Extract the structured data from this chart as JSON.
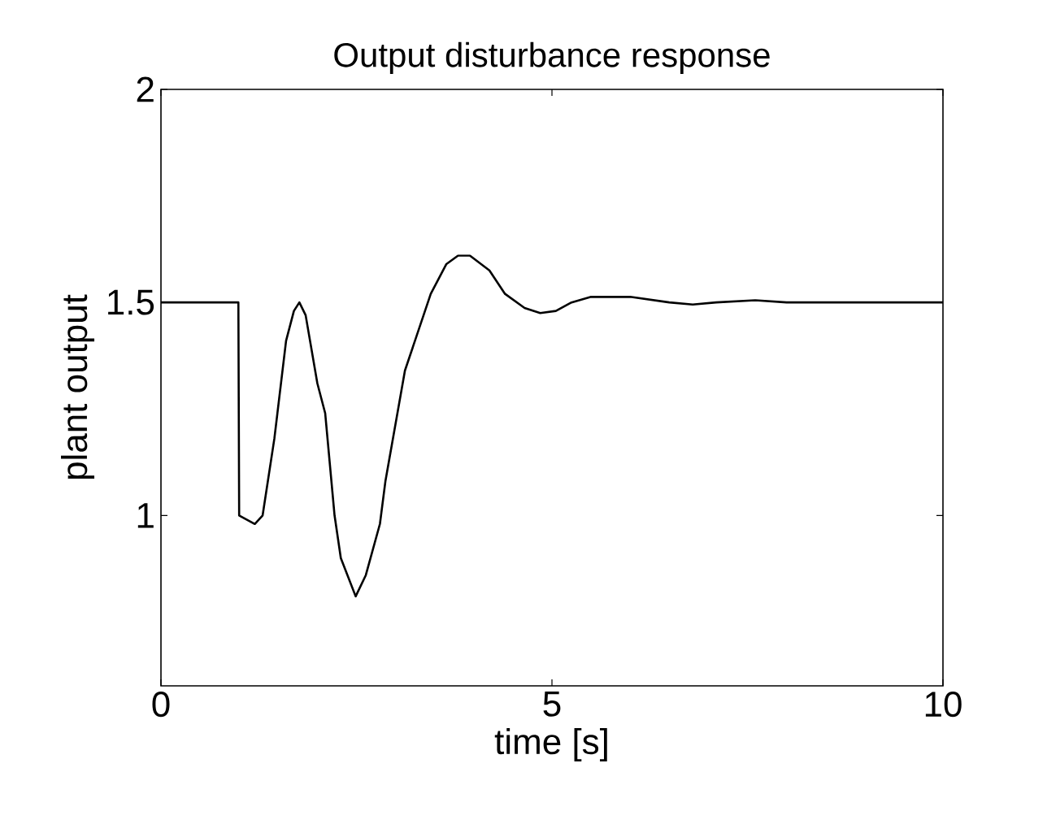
{
  "chart_data": {
    "type": "line",
    "title": "Output disturbance response",
    "xlabel": "time [s]",
    "ylabel": "plant output",
    "xlim": [
      0,
      10
    ],
    "ylim": [
      0.6,
      2
    ],
    "xticks": [
      0,
      5,
      10
    ],
    "yticks": [
      1,
      1.5,
      2
    ],
    "marker": "none",
    "line_style": "solid",
    "series": [
      {
        "color": "#000000",
        "x": [
          0,
          0.99,
          1.0,
          1.2,
          1.3,
          1.45,
          1.6,
          1.7,
          1.77,
          1.85,
          2.0,
          2.1,
          2.22,
          2.3,
          2.49,
          2.62,
          2.8,
          2.87,
          3.12,
          3.45,
          3.65,
          3.8,
          3.95,
          4.2,
          4.4,
          4.65,
          4.85,
          5.05,
          5.25,
          5.5,
          6.0,
          6.5,
          6.8,
          7.1,
          7.6,
          8.0,
          10
        ],
        "values": [
          1.5,
          1.5,
          1.0,
          0.98,
          1.0,
          1.18,
          1.41,
          1.48,
          1.5,
          1.47,
          1.31,
          1.24,
          1.0,
          0.9,
          0.81,
          0.86,
          0.98,
          1.08,
          1.34,
          1.52,
          1.59,
          1.61,
          1.61,
          1.575,
          1.52,
          1.487,
          1.475,
          1.48,
          1.5,
          1.513,
          1.513,
          1.5,
          1.495,
          1.5,
          1.505,
          1.5,
          1.5
        ]
      }
    ]
  }
}
